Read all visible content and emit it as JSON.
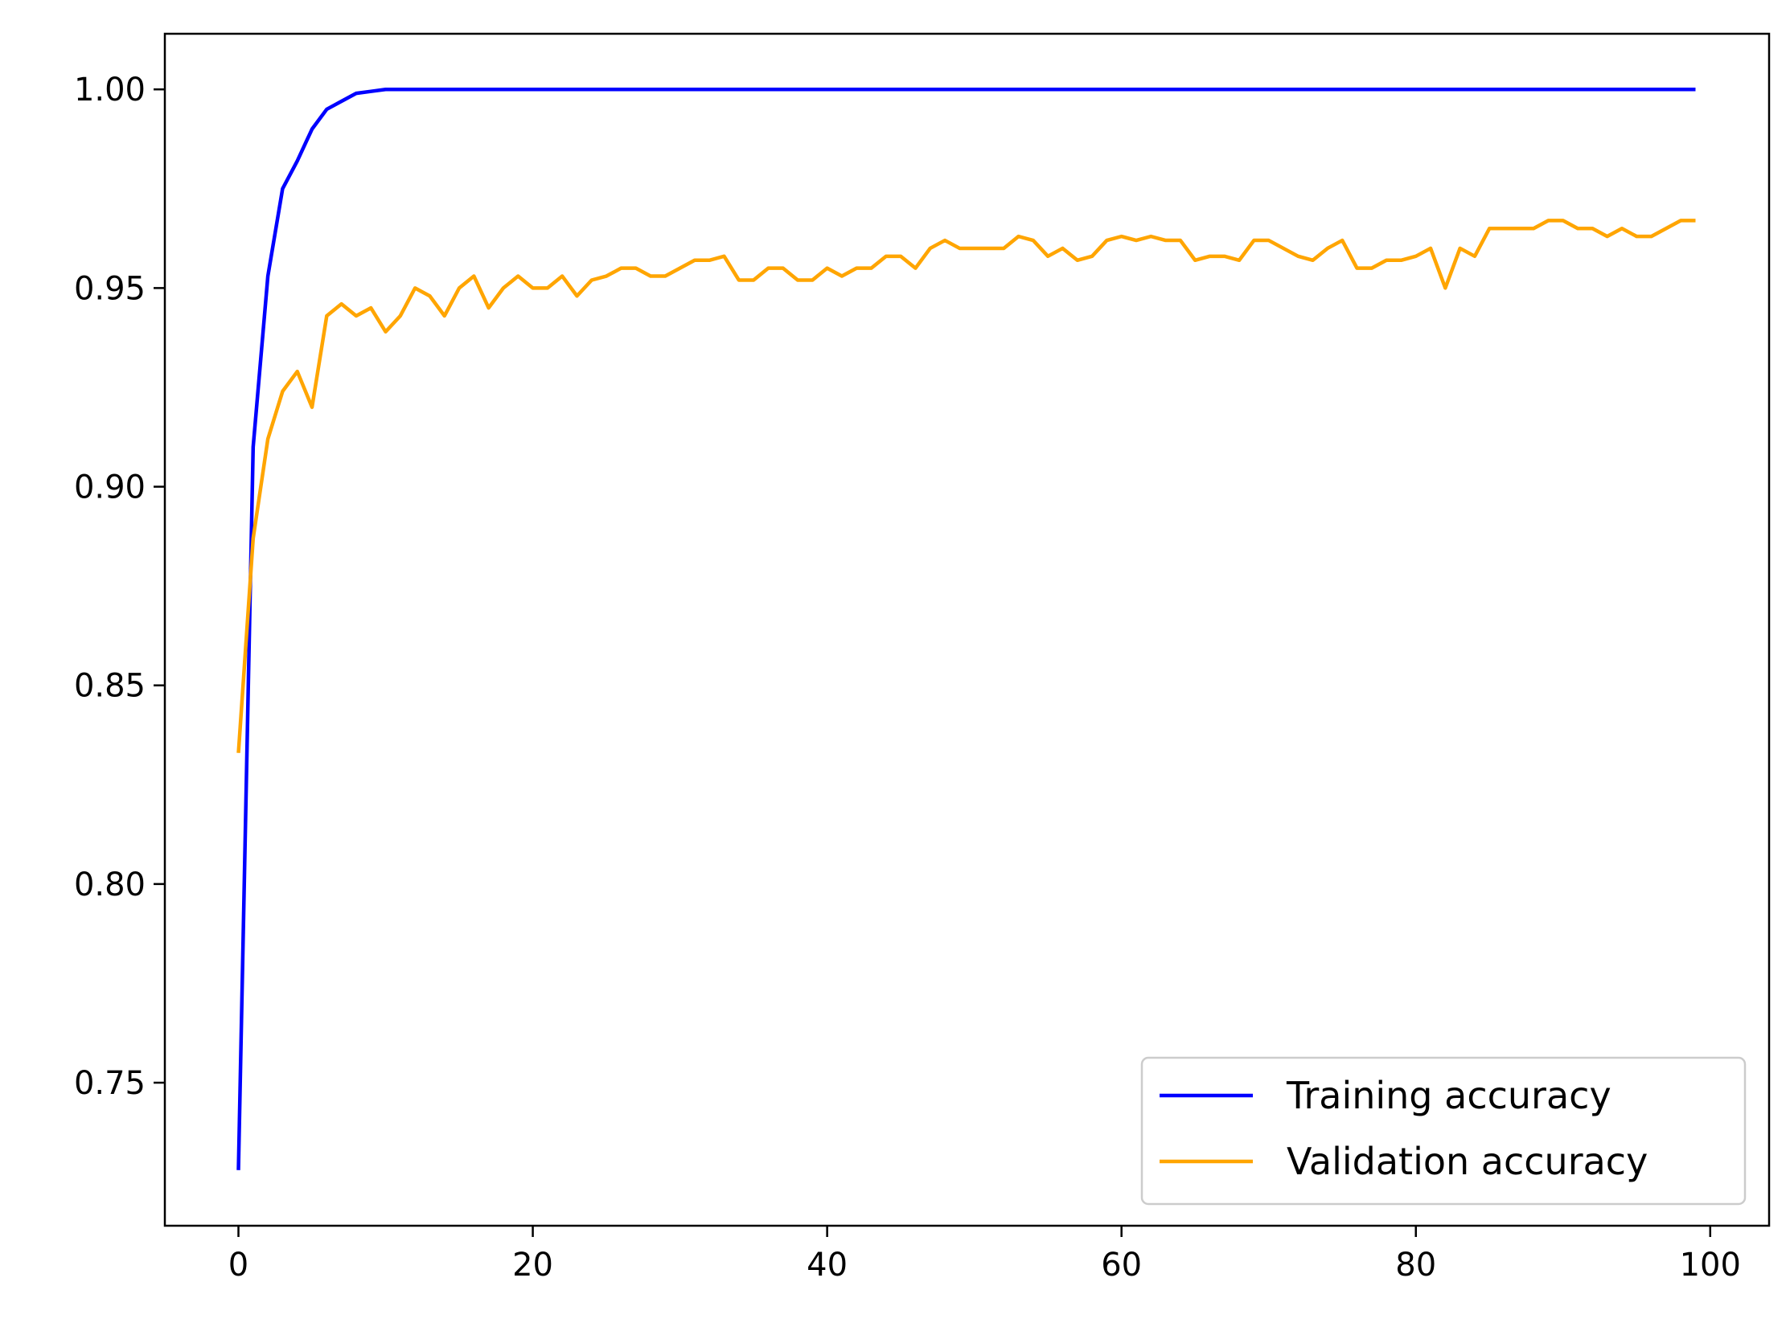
{
  "chart_data": {
    "type": "line",
    "title": "",
    "xlabel": "",
    "ylabel": "",
    "xlim": [
      -5,
      104
    ],
    "ylim": [
      0.714,
      1.014
    ],
    "xticks": [
      0,
      20,
      40,
      60,
      80,
      100
    ],
    "yticks": [
      0.75,
      0.8,
      0.85,
      0.9,
      0.95,
      1.0
    ],
    "xtick_labels": [
      "0",
      "20",
      "40",
      "60",
      "80",
      "100"
    ],
    "ytick_labels": [
      "0.75",
      "0.80",
      "0.85",
      "0.90",
      "0.95",
      "1.00"
    ],
    "grid": false,
    "legend_position": "lower-right",
    "series": [
      {
        "name": "Training accuracy",
        "color": "#0000ff",
        "x": [
          0,
          1,
          2,
          3,
          4,
          5,
          6,
          7,
          8,
          9,
          10,
          11,
          12,
          13,
          14,
          15,
          16,
          17,
          18,
          19,
          20,
          21,
          22,
          23,
          24,
          25,
          26,
          27,
          28,
          29,
          30,
          31,
          32,
          33,
          34,
          35,
          36,
          37,
          38,
          39,
          40,
          41,
          42,
          43,
          44,
          45,
          46,
          47,
          48,
          49,
          50,
          51,
          52,
          53,
          54,
          55,
          56,
          57,
          58,
          59,
          60,
          61,
          62,
          63,
          64,
          65,
          66,
          67,
          68,
          69,
          70,
          71,
          72,
          73,
          74,
          75,
          76,
          77,
          78,
          79,
          80,
          81,
          82,
          83,
          84,
          85,
          86,
          87,
          88,
          89,
          90,
          91,
          92,
          93,
          94,
          95,
          96,
          97,
          98,
          99
        ],
        "values": [
          0.728,
          0.91,
          0.953,
          0.975,
          0.982,
          0.99,
          0.995,
          0.997,
          0.999,
          0.9995,
          1.0,
          1.0,
          1.0,
          1.0,
          1.0,
          1.0,
          1.0,
          1.0,
          1.0,
          1.0,
          1.0,
          1.0,
          1.0,
          1.0,
          1.0,
          1.0,
          1.0,
          1.0,
          1.0,
          1.0,
          1.0,
          1.0,
          1.0,
          1.0,
          1.0,
          1.0,
          1.0,
          1.0,
          1.0,
          1.0,
          1.0,
          1.0,
          1.0,
          1.0,
          1.0,
          1.0,
          1.0,
          1.0,
          1.0,
          1.0,
          1.0,
          1.0,
          1.0,
          1.0,
          1.0,
          1.0,
          1.0,
          1.0,
          1.0,
          1.0,
          1.0,
          1.0,
          1.0,
          1.0,
          1.0,
          1.0,
          1.0,
          1.0,
          1.0,
          1.0,
          1.0,
          1.0,
          1.0,
          1.0,
          1.0,
          1.0,
          1.0,
          1.0,
          1.0,
          1.0,
          1.0,
          1.0,
          1.0,
          1.0,
          1.0,
          1.0,
          1.0,
          1.0,
          1.0,
          1.0,
          1.0,
          1.0,
          1.0,
          1.0,
          1.0,
          1.0,
          1.0,
          1.0,
          1.0,
          1.0
        ]
      },
      {
        "name": "Validation accuracy",
        "color": "#ffa500",
        "x": [
          0,
          1,
          2,
          3,
          4,
          5,
          6,
          7,
          8,
          9,
          10,
          11,
          12,
          13,
          14,
          15,
          16,
          17,
          18,
          19,
          20,
          21,
          22,
          23,
          24,
          25,
          26,
          27,
          28,
          29,
          30,
          31,
          32,
          33,
          34,
          35,
          36,
          37,
          38,
          39,
          40,
          41,
          42,
          43,
          44,
          45,
          46,
          47,
          48,
          49,
          50,
          51,
          52,
          53,
          54,
          55,
          56,
          57,
          58,
          59,
          60,
          61,
          62,
          63,
          64,
          65,
          66,
          67,
          68,
          69,
          70,
          71,
          72,
          73,
          74,
          75,
          76,
          77,
          78,
          79,
          80,
          81,
          82,
          83,
          84,
          85,
          86,
          87,
          88,
          89,
          90,
          91,
          92,
          93,
          94,
          95,
          96,
          97,
          98,
          99
        ],
        "values": [
          0.833,
          0.887,
          0.912,
          0.924,
          0.929,
          0.92,
          0.943,
          0.946,
          0.943,
          0.945,
          0.939,
          0.943,
          0.95,
          0.948,
          0.943,
          0.95,
          0.953,
          0.945,
          0.95,
          0.953,
          0.95,
          0.95,
          0.953,
          0.948,
          0.952,
          0.953,
          0.955,
          0.955,
          0.953,
          0.953,
          0.955,
          0.957,
          0.957,
          0.958,
          0.952,
          0.952,
          0.955,
          0.955,
          0.952,
          0.952,
          0.955,
          0.953,
          0.955,
          0.955,
          0.958,
          0.958,
          0.955,
          0.96,
          0.962,
          0.96,
          0.96,
          0.96,
          0.96,
          0.963,
          0.962,
          0.958,
          0.96,
          0.957,
          0.958,
          0.962,
          0.963,
          0.962,
          0.963,
          0.962,
          0.962,
          0.957,
          0.958,
          0.958,
          0.957,
          0.962,
          0.962,
          0.96,
          0.958,
          0.957,
          0.96,
          0.962,
          0.955,
          0.955,
          0.957,
          0.957,
          0.958,
          0.96,
          0.95,
          0.96,
          0.958,
          0.965,
          0.965,
          0.965,
          0.965,
          0.967,
          0.967,
          0.965,
          0.965,
          0.963,
          0.965,
          0.963,
          0.963,
          0.965,
          0.967,
          0.967
        ]
      }
    ]
  }
}
